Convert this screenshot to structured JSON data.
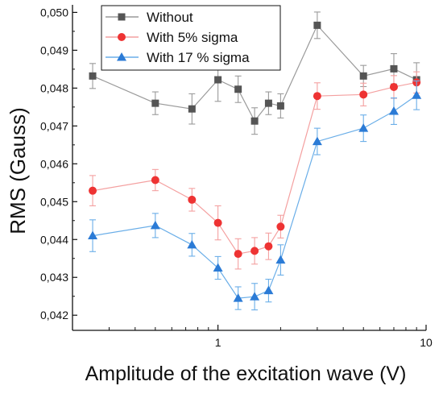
{
  "chart_data": {
    "type": "line",
    "xlabel": "Amplitude of the excitation wave (V)",
    "ylabel": "RMS (Gauss)",
    "xscale": "log",
    "xlim": [
      0.2,
      10
    ],
    "ylim": [
      0.0416,
      0.0502
    ],
    "x_ticks": [
      {
        "value": 1,
        "label": "1"
      },
      {
        "value": 10,
        "label": "10"
      }
    ],
    "y_ticks": [
      {
        "value": 0.042,
        "label": "0,042"
      },
      {
        "value": 0.043,
        "label": "0,043"
      },
      {
        "value": 0.044,
        "label": "0,044"
      },
      {
        "value": 0.045,
        "label": "0,045"
      },
      {
        "value": 0.046,
        "label": "0,046"
      },
      {
        "value": 0.047,
        "label": "0,047"
      },
      {
        "value": 0.048,
        "label": "0,048"
      },
      {
        "value": 0.049,
        "label": "0,049"
      },
      {
        "value": 0.05,
        "label": "0,050"
      }
    ],
    "legend_position": "top-left",
    "x": [
      0.25,
      0.5,
      0.75,
      1.0,
      1.25,
      1.5,
      1.75,
      2.0,
      3.0,
      5.0,
      7.0,
      9.0
    ],
    "series": [
      {
        "name": "Without",
        "color": "#555555",
        "line_color": "#9a9a9a",
        "marker": "square",
        "values": [
          0.04832,
          0.0476,
          0.04745,
          0.04822,
          0.04797,
          0.04713,
          0.0476,
          0.04753,
          0.04966,
          0.04832,
          0.04851,
          0.04822
        ],
        "errors": [
          0.00033,
          0.0003,
          0.0004,
          0.00057,
          0.00035,
          0.00035,
          0.0003,
          0.00032,
          0.00035,
          0.00028,
          0.0004,
          0.00045
        ]
      },
      {
        "name": "With 5% sigma",
        "color": "#ee3333",
        "line_color": "#f4a0a0",
        "marker": "circle",
        "values": [
          0.04529,
          0.04557,
          0.04505,
          0.04444,
          0.04362,
          0.0437,
          0.04382,
          0.04434,
          0.04779,
          0.04783,
          0.04803,
          0.04815
        ],
        "errors": [
          0.0004,
          0.00028,
          0.0003,
          0.00045,
          0.0004,
          0.00035,
          0.00035,
          0.0003,
          0.00035,
          0.0003,
          0.0003,
          0.00028
        ]
      },
      {
        "name": "With 17 % sigma",
        "color": "#2b7bd6",
        "line_color": "#6aaee8",
        "marker": "triangle",
        "values": [
          0.0441,
          0.04437,
          0.04386,
          0.04325,
          0.04245,
          0.04249,
          0.04265,
          0.04346,
          0.04659,
          0.04694,
          0.04739,
          0.04781
        ],
        "errors": [
          0.00042,
          0.00032,
          0.0003,
          0.0003,
          0.0003,
          0.00035,
          0.0003,
          0.0004,
          0.00035,
          0.00035,
          0.00035,
          0.00038
        ]
      }
    ]
  }
}
